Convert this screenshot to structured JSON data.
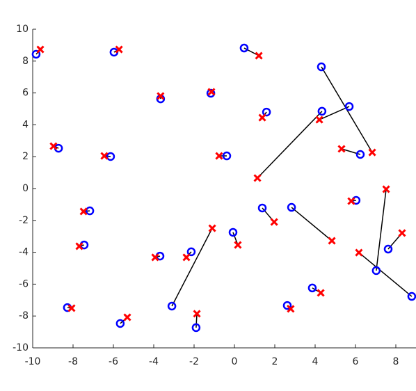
{
  "chart_data": {
    "type": "scatter",
    "xlim": [
      -10,
      9
    ],
    "ylim": [
      -10,
      10
    ],
    "xticks": [
      -10,
      -8,
      -6,
      -4,
      -2,
      0,
      2,
      4,
      6,
      8
    ],
    "yticks": [
      -10,
      -8,
      -6,
      -4,
      -2,
      0,
      2,
      4,
      6,
      8,
      10
    ],
    "grid": false,
    "connect_pairs": true,
    "line_color": "#000000",
    "series": [
      {
        "color": "#0000ff",
        "marker": "o",
        "x": [
          -9.83,
          -5.97,
          0.48,
          -3.66,
          -1.17,
          4.31,
          4.34,
          1.59,
          -8.72,
          -6.14,
          -0.38,
          6.24,
          -7.17,
          6.03,
          1.38,
          2.83,
          7.03,
          7.62,
          8.79,
          -7.45,
          -0.07,
          -3.69,
          -2.14,
          -3.1,
          -8.28,
          -5.66,
          -1.9,
          2.62,
          3.86,
          5.69
        ],
        "values": [
          8.43,
          8.56,
          8.82,
          5.63,
          5.98,
          7.64,
          4.85,
          4.8,
          2.53,
          2.01,
          2.05,
          2.14,
          -1.4,
          -0.74,
          -1.22,
          -1.18,
          -5.15,
          -3.8,
          -6.77,
          -3.54,
          -2.75,
          -4.24,
          -3.97,
          -7.38,
          -7.47,
          -8.47,
          -8.73,
          -7.34,
          -6.24,
          5.15
        ]
      },
      {
        "color": "#ff0000",
        "marker": "x",
        "x": [
          -9.62,
          -5.72,
          1.21,
          -3.66,
          -1.14,
          6.83,
          1.14,
          1.38,
          -8.97,
          -6.45,
          -0.76,
          5.31,
          -7.48,
          5.79,
          1.97,
          4.83,
          7.52,
          8.31,
          6.17,
          -7.69,
          0.17,
          -3.93,
          -2.38,
          -1.1,
          -8.07,
          -5.31,
          -1.86,
          2.79,
          4.28,
          4.21
        ],
        "values": [
          8.73,
          8.73,
          8.34,
          5.81,
          6.07,
          2.27,
          0.66,
          4.45,
          2.66,
          2.05,
          2.05,
          2.49,
          -1.44,
          -0.79,
          -2.1,
          -3.28,
          -0.04,
          -2.79,
          -4.02,
          -3.62,
          -3.54,
          -4.32,
          -4.32,
          -2.49,
          -7.51,
          -8.08,
          -7.86,
          -7.55,
          -6.55,
          4.32
        ]
      }
    ]
  }
}
